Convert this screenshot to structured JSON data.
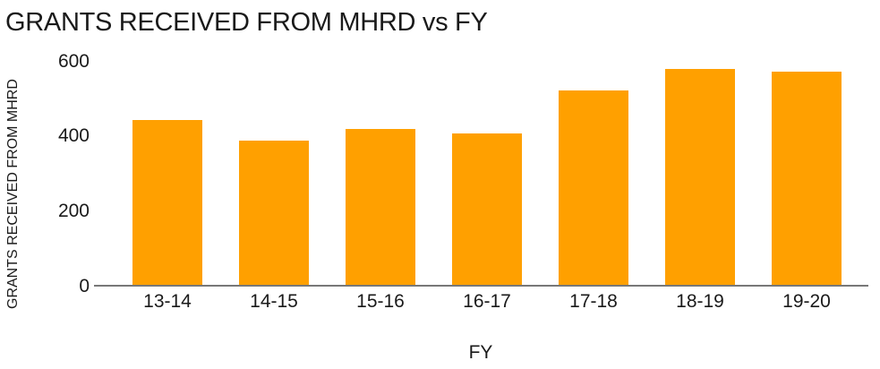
{
  "chart_data": {
    "type": "bar",
    "title": "GRANTS RECEIVED FROM MHRD vs FY",
    "xlabel": "FY",
    "ylabel": "GRANTS RECEIVED FROM MHRD",
    "categories": [
      "13-14",
      "14-15",
      "15-16",
      "16-17",
      "17-18",
      "18-19",
      "19-20"
    ],
    "values": [
      443,
      388,
      418,
      406,
      522,
      578,
      572
    ],
    "ylim": [
      0,
      600
    ],
    "yticks": [
      0,
      200,
      400,
      600
    ],
    "grid": false,
    "legend": false,
    "bar_color": "#FFA000",
    "axis_line_color": "#787878",
    "text_color": "#1a1a1a",
    "background_color": "#FFFFFF"
  }
}
